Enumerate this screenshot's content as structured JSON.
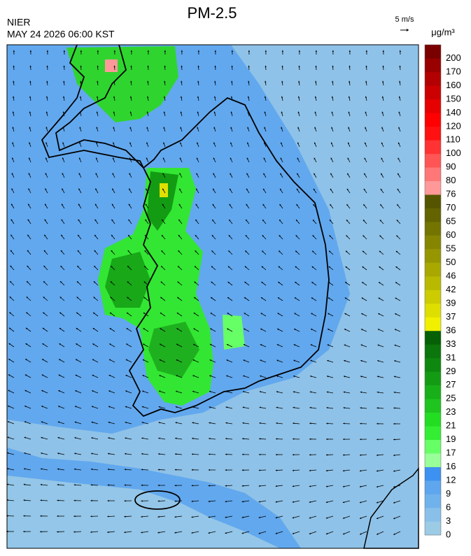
{
  "header": {
    "title": "PM-2.5",
    "agency": "NIER",
    "datetime": "MAY 24 2026 06:00 KST",
    "wind_scale": "5 m/s"
  },
  "legend": {
    "unit": "μg/m³",
    "ticks": [
      0,
      3,
      6,
      9,
      12,
      16,
      17,
      19,
      21,
      23,
      25,
      27,
      29,
      31,
      33,
      36,
      37,
      39,
      42,
      46,
      50,
      55,
      60,
      65,
      70,
      76,
      80,
      90,
      100,
      110,
      120,
      140,
      150,
      160,
      170,
      200
    ],
    "colors": [
      "#9ccbe6",
      "#88c0ea",
      "#70b2ec",
      "#5ea6ee",
      "#3d91f0",
      "#99ff99",
      "#66ff66",
      "#33ee33",
      "#22dd22",
      "#1fc41f",
      "#18b018",
      "#139c13",
      "#0f880f",
      "#0b760b",
      "#066006",
      "#f0f000",
      "#dede00",
      "#cccc00",
      "#b9b900",
      "#a8a800",
      "#969600",
      "#858500",
      "#747400",
      "#636300",
      "#555500",
      "#ff9999",
      "#ff7777",
      "#ff5555",
      "#ff3333",
      "#ff1111",
      "#ff0000",
      "#e60000",
      "#cc0000",
      "#b30000",
      "#990000",
      "#7a0000"
    ]
  }
}
